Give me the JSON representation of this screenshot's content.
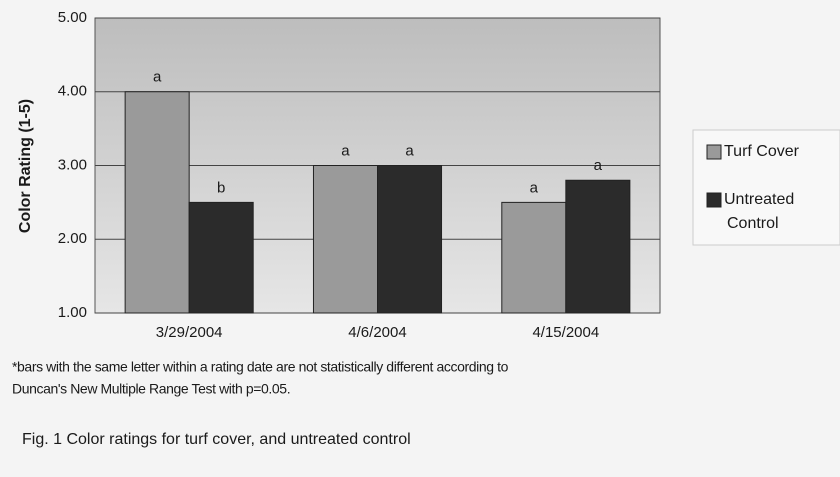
{
  "chart_data": {
    "type": "bar",
    "y_label": "Color Rating (1-5)",
    "categories": [
      "3/29/2004",
      "4/6/2004",
      "4/15/2004"
    ],
    "series": [
      {
        "name": "Turf Cover",
        "color": "#9a9a9a",
        "values": [
          4.0,
          3.0,
          2.5
        ],
        "letters": [
          "a",
          "a",
          "a"
        ]
      },
      {
        "name": "Untreated Control",
        "color": "#2b2b2b",
        "values": [
          2.5,
          3.0,
          2.8
        ],
        "letters": [
          "b",
          "a",
          "a"
        ]
      }
    ],
    "ylim": [
      1,
      5
    ],
    "yticks": [
      {
        "value": 1,
        "label": "1.00"
      },
      {
        "value": 2,
        "label": "2.00"
      },
      {
        "value": 3,
        "label": "3.00"
      },
      {
        "value": 4,
        "label": "4.00"
      },
      {
        "value": 5,
        "label": "5.00"
      }
    ],
    "grid": true,
    "legend": "right",
    "footnote": [
      "*bars with the same letter within a rating date are not statistically different according to",
      "Duncan's New Multiple Range Test with p=0.05."
    ],
    "caption": "Fig. 1 Color ratings for turf cover, and untreated control"
  }
}
